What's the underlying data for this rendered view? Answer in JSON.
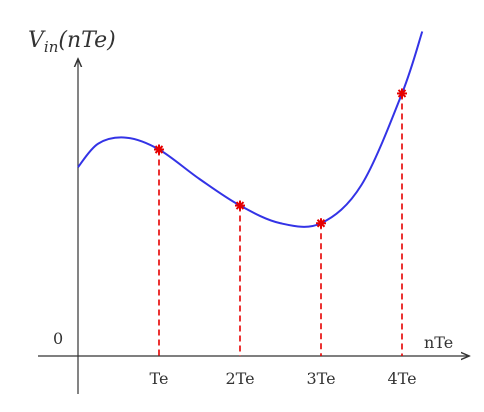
{
  "figure": {
    "y_axis_label": {
      "main": "V",
      "subscript": "in",
      "argument": "(nTe)"
    },
    "x_axis_label": "nTe",
    "origin_label": "0",
    "tick_labels": [
      "Te",
      "2Te",
      "3Te",
      "4Te"
    ]
  },
  "colors": {
    "axis": "#333333",
    "curve": "#3333e6",
    "samples": "#e60000"
  },
  "chart_data": {
    "type": "line",
    "xlabel": "nTe",
    "categories": [
      "Te",
      "2Te",
      "3Te",
      "4Te"
    ],
    "curve": {
      "x": [
        0,
        0.25,
        0.6,
        1,
        1.5,
        2,
        2.5,
        3,
        3.5,
        4,
        4.25
      ],
      "y": [
        0.64,
        0.72,
        0.74,
        0.7,
        0.6,
        0.51,
        0.45,
        0.45,
        0.58,
        0.89,
        1.1
      ]
    },
    "samples": {
      "x": [
        1,
        2,
        3,
        4
      ],
      "y": [
        0.7,
        0.51,
        0.45,
        0.89
      ]
    }
  }
}
